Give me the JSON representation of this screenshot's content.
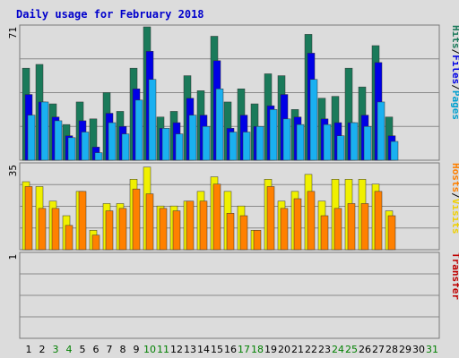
{
  "chart_data": [
    {
      "type": "bar",
      "title": "Daily usage for February 2018",
      "ymax_label": "71",
      "ylim": [
        0,
        71
      ],
      "side_labels": [
        "Hits",
        "/",
        "Files",
        "/",
        "Pages"
      ],
      "categories": [
        "1",
        "2",
        "3",
        "4",
        "5",
        "6",
        "7",
        "8",
        "9",
        "10",
        "11",
        "12",
        "13",
        "14",
        "15",
        "16",
        "17",
        "18",
        "19",
        "20",
        "21",
        "22",
        "23",
        "24",
        "25",
        "26",
        "27",
        "28",
        "29",
        "30",
        "31"
      ],
      "weekend_days": [
        "3",
        "4",
        "10",
        "11",
        "17",
        "18",
        "24",
        "25",
        "31"
      ],
      "series": [
        {
          "name": "Hits",
          "color": "#1a7a5a",
          "values": [
            49,
            51,
            30,
            19,
            31,
            22,
            36,
            26,
            49,
            71,
            23,
            26,
            45,
            37,
            66,
            31,
            38,
            30,
            46,
            45,
            27,
            67,
            33,
            34,
            49,
            39,
            61,
            23,
            0,
            0,
            0
          ]
        },
        {
          "name": "Files",
          "color": "#0000e6",
          "values": [
            35,
            31,
            23,
            13,
            21,
            7,
            25,
            18,
            38,
            58,
            17,
            20,
            33,
            24,
            53,
            17,
            24,
            18,
            29,
            35,
            23,
            57,
            22,
            20,
            20,
            24,
            52,
            13,
            0,
            0,
            0
          ]
        },
        {
          "name": "Pages",
          "color": "#1ab0f0",
          "values": [
            24,
            31,
            21,
            12,
            15,
            4,
            20,
            14,
            32,
            43,
            17,
            14,
            24,
            18,
            38,
            15,
            15,
            18,
            27,
            22,
            19,
            43,
            19,
            13,
            20,
            18,
            31,
            10,
            0,
            0,
            0
          ]
        }
      ]
    },
    {
      "type": "bar",
      "ymax_label": "35",
      "ylim": [
        0,
        35
      ],
      "side_labels": [
        "Hosts",
        "/",
        "Visits"
      ],
      "categories": [
        "1",
        "2",
        "3",
        "4",
        "5",
        "6",
        "7",
        "8",
        "9",
        "10",
        "11",
        "12",
        "13",
        "14",
        "15",
        "16",
        "17",
        "18",
        "19",
        "20",
        "21",
        "22",
        "23",
        "24",
        "25",
        "26",
        "27",
        "28",
        "29",
        "30",
        "31"
      ],
      "series": [
        {
          "name": "Hosts",
          "color": "#f0f000",
          "values": [
            28,
            26,
            20,
            14,
            24,
            8,
            19,
            19,
            29,
            34,
            18,
            18,
            20,
            24,
            30,
            24,
            18,
            8,
            29,
            20,
            24,
            31,
            20,
            29,
            29,
            29,
            27,
            16,
            0,
            0,
            0
          ]
        },
        {
          "name": "Visits",
          "color": "#ff8000",
          "values": [
            26,
            17,
            17,
            10,
            24,
            6,
            16,
            17,
            25,
            23,
            17,
            16,
            20,
            20,
            27,
            15,
            14,
            8,
            26,
            17,
            21,
            24,
            14,
            17,
            19,
            19,
            24,
            14,
            0,
            0,
            0
          ]
        }
      ]
    },
    {
      "type": "bar",
      "ymax_label": "1",
      "ylim": [
        0,
        1
      ],
      "side_labels": [
        "Transfer"
      ],
      "categories": [
        "1",
        "2",
        "3",
        "4",
        "5",
        "6",
        "7",
        "8",
        "9",
        "10",
        "11",
        "12",
        "13",
        "14",
        "15",
        "16",
        "17",
        "18",
        "19",
        "20",
        "21",
        "22",
        "23",
        "24",
        "25",
        "26",
        "27",
        "28",
        "29",
        "30",
        "31"
      ],
      "series": [
        {
          "name": "Transfer",
          "color": "#c00000",
          "values": [
            0,
            0,
            0,
            0,
            0,
            0,
            0,
            0,
            0,
            0,
            0,
            0,
            0,
            0,
            0,
            0,
            0,
            0,
            0,
            0,
            0,
            0,
            0,
            0,
            0,
            0,
            0,
            0,
            0,
            0,
            0
          ]
        }
      ]
    }
  ],
  "colors": {
    "background": "#dcdcdc",
    "title": "#0000cc",
    "day_weekday": "#000000",
    "day_weekend": "#008000",
    "pages_label": "#00a0d0"
  }
}
